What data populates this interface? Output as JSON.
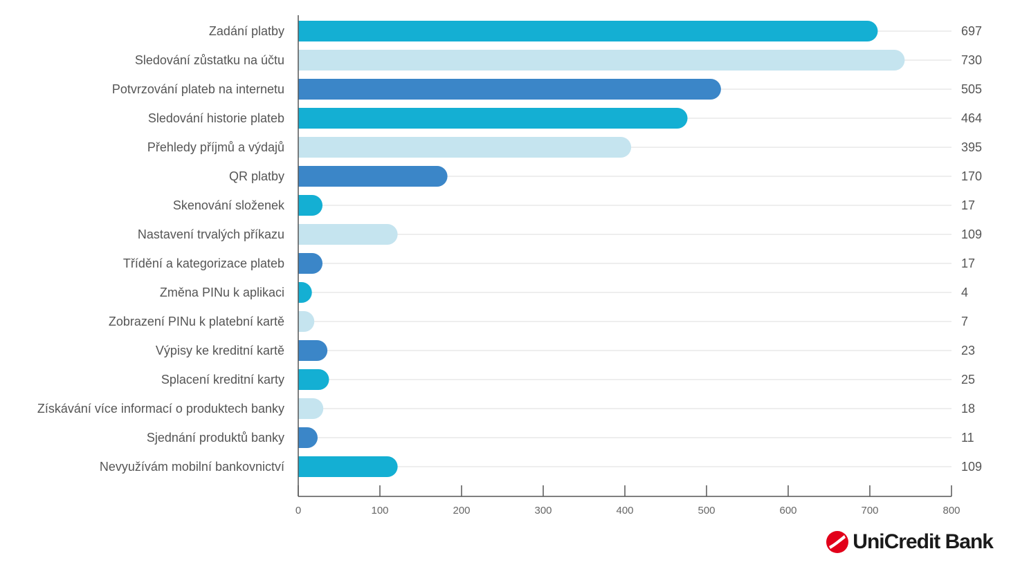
{
  "chart_data": {
    "type": "bar",
    "orientation": "horizontal",
    "categories": [
      "Zadání platby",
      "Sledování zůstatku na účtu",
      "Potvrzování plateb na internetu",
      "Sledování historie plateb",
      "Přehledy příjmů a výdajů",
      "QR platby",
      "Skenování složenek",
      "Nastavení trvalých příkazu",
      "Třídění a kategorizace plateb",
      "Změna PINu k aplikaci",
      "Zobrazení PINu k platební kartě",
      "Výpisy ke kreditní kartě",
      "Splacení kreditní karty",
      "Získávání více informací o produktech banky",
      "Sjednání produktů banky",
      "Nevyužívám mobilní bankovnictví"
    ],
    "values": [
      697,
      730,
      505,
      464,
      395,
      170,
      17,
      109,
      17,
      4,
      7,
      23,
      25,
      18,
      11,
      109
    ],
    "value_labels": [
      "697",
      "730",
      "505",
      "464",
      "395",
      "170",
      "17",
      "109",
      "17",
      "4",
      "7",
      "23",
      "25",
      "18",
      "11",
      "109"
    ],
    "xlim": [
      0,
      800
    ],
    "xticks": [
      "0",
      "100",
      "200",
      "300",
      "400",
      "500",
      "600",
      "700",
      "800"
    ],
    "grid": "horizontal row guide lines",
    "bar_colors": [
      "#14afd3",
      "#c5e4ef",
      "#3b86c8"
    ],
    "grid_color": "#dddddd",
    "axis_color": "#555555"
  },
  "brand": {
    "name": "UniCredit Bank",
    "logo": "unicredit-logo-icon",
    "logo_color": "#e2001a"
  }
}
